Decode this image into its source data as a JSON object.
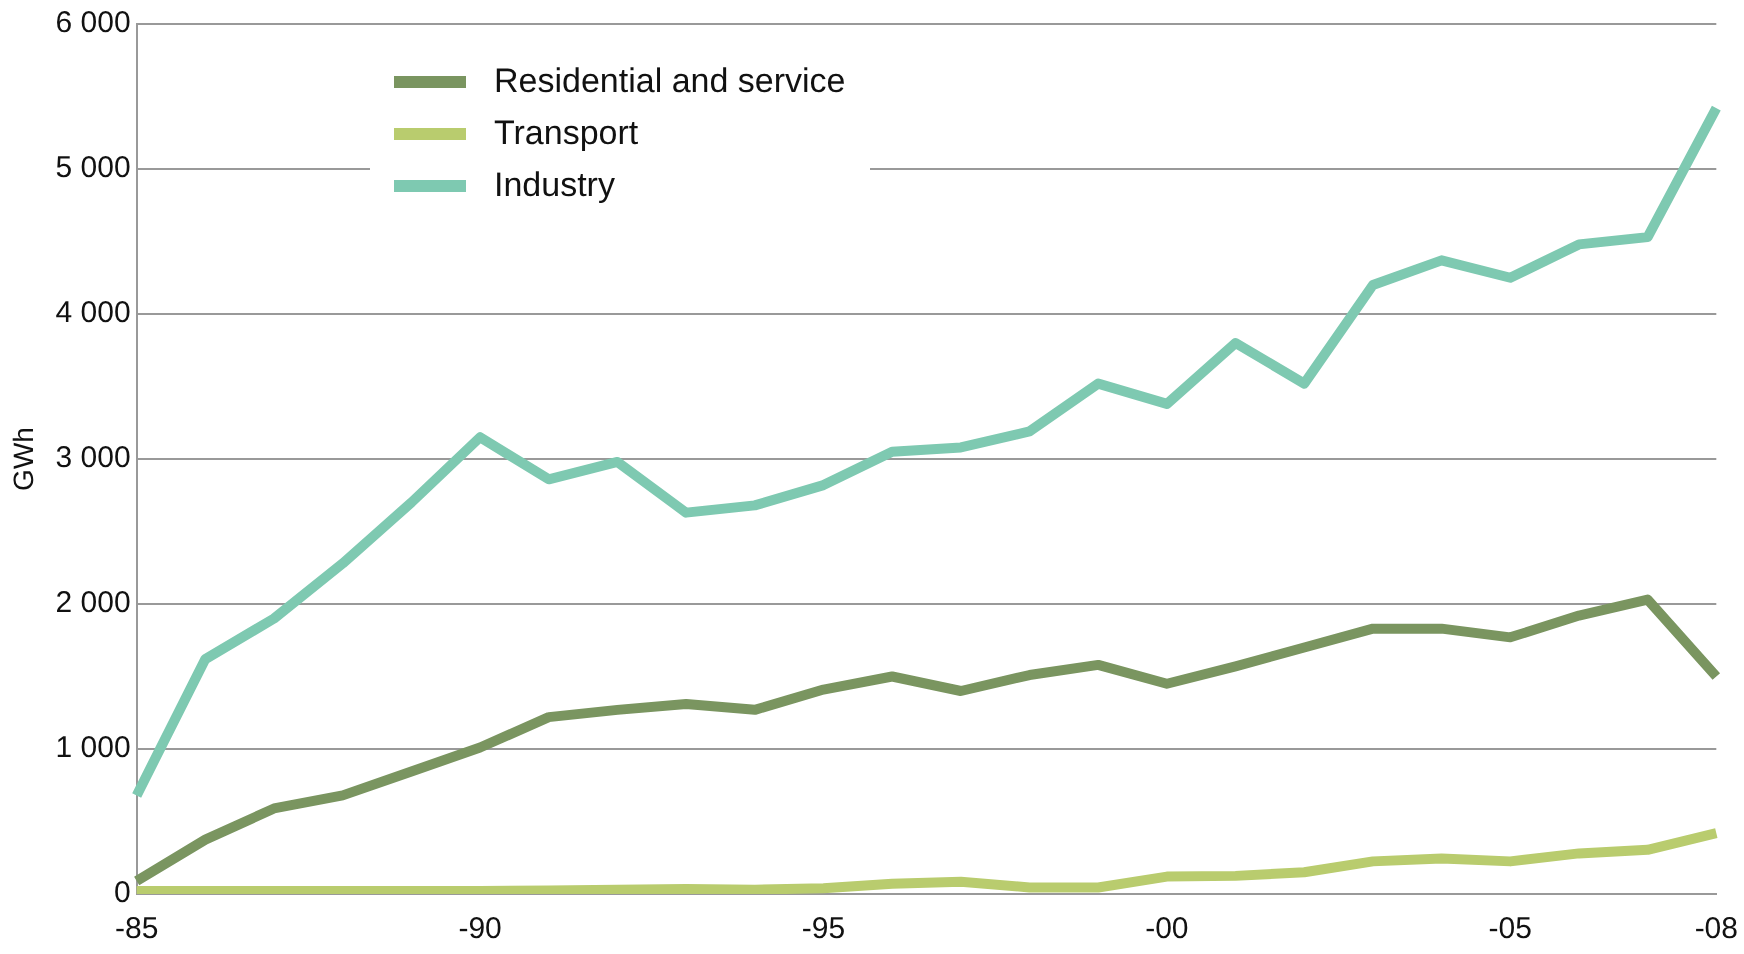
{
  "chart_data": {
    "type": "line",
    "ylabel": "GWh",
    "categories": [
      "-85",
      null,
      null,
      null,
      null,
      "-90",
      null,
      null,
      null,
      null,
      "-95",
      null,
      null,
      null,
      null,
      "-00",
      null,
      null,
      null,
      null,
      "-05",
      null,
      null,
      "-08"
    ],
    "series": [
      {
        "name": "Residential and service",
        "color": "#7a9560",
        "values": [
          90,
          375,
          590,
          680,
          845,
          1010,
          1220,
          1270,
          1310,
          1270,
          1410,
          1500,
          1400,
          1510,
          1580,
          1450,
          1570,
          1700,
          1830,
          1830,
          1770,
          1920,
          2030,
          1500
        ]
      },
      {
        "name": "Transport",
        "color": "#b9cc6e",
        "values": [
          20,
          20,
          20,
          20,
          20,
          20,
          25,
          30,
          35,
          30,
          40,
          70,
          85,
          45,
          45,
          120,
          125,
          150,
          225,
          245,
          225,
          280,
          305,
          420
        ]
      },
      {
        "name": "Industry",
        "color": "#7ec9b1",
        "values": [
          680,
          1620,
          1900,
          2280,
          2700,
          3150,
          2860,
          2980,
          2630,
          2680,
          2820,
          3050,
          3080,
          3190,
          3520,
          3380,
          3800,
          3520,
          4200,
          4370,
          4250,
          4480,
          4530,
          5420
        ]
      }
    ],
    "ylim": [
      0,
      6000
    ],
    "yticks": [
      0,
      {
        "value": 1000,
        "label": "1 000"
      },
      {
        "value": 2000,
        "label": "2 000"
      },
      {
        "value": 3000,
        "label": "3 000"
      },
      {
        "value": 4000,
        "label": "4 000"
      },
      {
        "value": 5000,
        "label": "5 000"
      },
      {
        "value": 6000,
        "label": "6 000"
      }
    ],
    "grid": "y",
    "legend": "top left",
    "marker": "none",
    "line_style": "solid"
  }
}
